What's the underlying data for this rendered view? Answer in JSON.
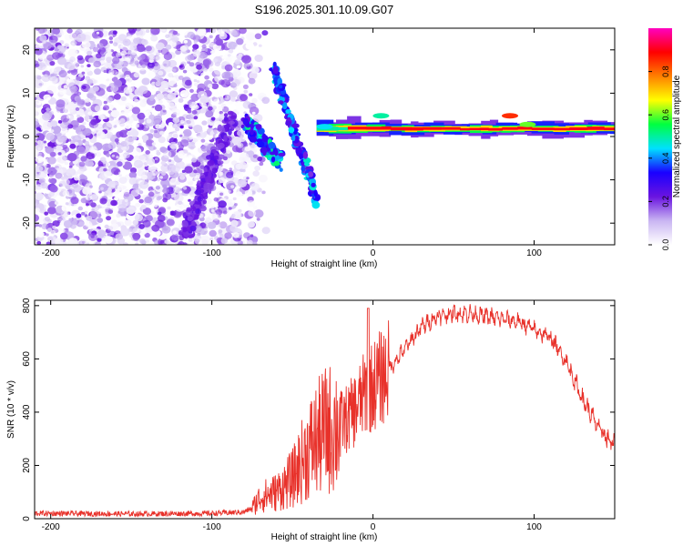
{
  "figure": {
    "title": "S196.2025.301.10.09.G07"
  },
  "chart_data": [
    {
      "type": "heatmap",
      "title": "S196.2025.301.10.09.G07",
      "xlabel": "Height of straight line (km)",
      "ylabel": "Frequency (Hz)",
      "xlim": [
        -210,
        150
      ],
      "ylim": [
        -25,
        25
      ],
      "xticks": [
        -200,
        -100,
        0,
        100
      ],
      "yticks": [
        -20,
        -10,
        0,
        10,
        20
      ],
      "colorbar": {
        "label": "Normalized spectral amplitude",
        "range": [
          0,
          1
        ],
        "ticks": [
          "0.0",
          "0.2",
          "0.4",
          "0.6",
          "0.8"
        ],
        "colors": [
          "#ffffff",
          "#c9b5f2",
          "#6a14e0",
          "#1a00ff",
          "#00e0ff",
          "#00ff40",
          "#ffff00",
          "#ff8000",
          "#ff0000",
          "#ff00c0"
        ]
      },
      "features": {
        "noise_region_x": [
          -210,
          -85
        ],
        "arc1": {
          "x": [
            -80,
            -57
          ],
          "freq": [
            4,
            -6
          ],
          "level": 0.45
        },
        "arc2": {
          "x": [
            -62,
            -35
          ],
          "freq": [
            16,
            -15
          ],
          "level": 0.4
        },
        "carrier": {
          "x": [
            -35,
            150
          ],
          "freq": 1.8,
          "level": 0.9
        }
      }
    },
    {
      "type": "line",
      "xlabel": "Height of straight line (km)",
      "ylabel": "SNR (10 * v/v)",
      "xlim": [
        -210,
        150
      ],
      "ylim": [
        0,
        820
      ],
      "xticks": [
        -200,
        -100,
        0,
        100
      ],
      "yticks": [
        0,
        200,
        400,
        600,
        800
      ],
      "series": [
        {
          "name": "SNR",
          "color": "#e8312a",
          "x": [
            -210,
            -150,
            -100,
            -80,
            -75,
            -70,
            -60,
            -50,
            -40,
            -30,
            -25,
            -20,
            -15,
            -10,
            -5,
            0,
            5,
            10,
            20,
            30,
            40,
            50,
            60,
            70,
            80,
            90,
            100,
            110,
            120,
            130,
            140,
            150
          ],
          "values": [
            20,
            18,
            20,
            25,
            40,
            80,
            100,
            150,
            260,
            330,
            340,
            360,
            380,
            420,
            470,
            500,
            530,
            560,
            640,
            720,
            760,
            770,
            770,
            760,
            750,
            740,
            710,
            680,
            590,
            450,
            340,
            270
          ]
        }
      ]
    }
  ]
}
